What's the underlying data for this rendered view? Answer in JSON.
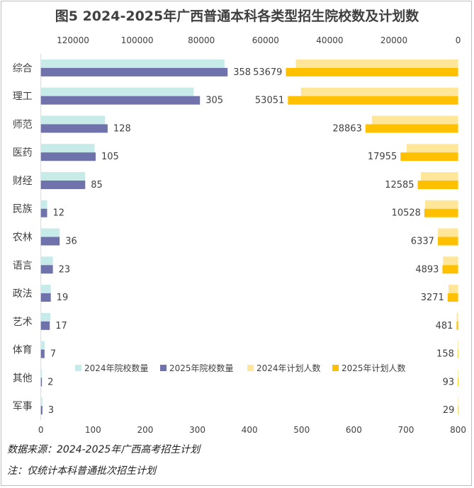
{
  "chart_data": {
    "type": "bar",
    "orientation": "horizontal",
    "title": "图5 2024-2025年广西普通本科各类型招生院校数及计划数",
    "categories": [
      "综合",
      "理工",
      "师范",
      "医药",
      "财经",
      "民族",
      "农林",
      "语言",
      "政法",
      "艺术",
      "体育",
      "其他",
      "军事"
    ],
    "series": [
      {
        "name": "2024年院校数量",
        "axis": "bottom",
        "color": "#c6ebe8",
        "values": [
          352,
          293,
          123,
          103,
          85,
          12,
          36,
          23,
          19,
          18,
          7,
          2,
          3
        ]
      },
      {
        "name": "2025年院校数量",
        "axis": "bottom",
        "color": "#7073ab",
        "values": [
          358,
          305,
          128,
          105,
          85,
          12,
          36,
          23,
          19,
          17,
          7,
          2,
          3
        ],
        "labels": [
          "358",
          "305",
          "128",
          "105",
          "85",
          "12",
          "36",
          "23",
          "19",
          "17",
          "7",
          "2",
          "3"
        ]
      },
      {
        "name": "2024年计划人数",
        "axis": "top",
        "color": "#ffe699",
        "values": [
          50570,
          48960,
          26890,
          16030,
          11610,
          10290,
          6300,
          4700,
          3000,
          450,
          150,
          90,
          30
        ]
      },
      {
        "name": "2025年计划人数",
        "axis": "top",
        "color": "#ffc000",
        "values": [
          53679,
          53051,
          28863,
          17955,
          12585,
          10528,
          6337,
          4893,
          3271,
          481,
          158,
          93,
          29
        ],
        "labels": [
          "53679",
          "53051",
          "28863",
          "17955",
          "12585",
          "10528",
          "6337",
          "4893",
          "3271",
          "481",
          "158",
          "93",
          "29"
        ]
      }
    ],
    "bottom_axis": {
      "range": [
        0,
        800
      ],
      "ticks": [
        "0",
        "100",
        "200",
        "300",
        "400",
        "500",
        "600",
        "700",
        "800"
      ]
    },
    "top_axis": {
      "range": [
        0,
        130000
      ],
      "reversed": true,
      "ticks": [
        "120000",
        "100000",
        "80000",
        "60000",
        "40000",
        "20000",
        "0"
      ],
      "tick_values": [
        120000,
        100000,
        80000,
        60000,
        40000,
        20000,
        0
      ]
    },
    "legend": "lower-center",
    "grid": false
  },
  "notes": {
    "source": "数据来源：2024-2025年广西高考招生计划",
    "note": "注：仅统计本科普通批次招生计划"
  }
}
